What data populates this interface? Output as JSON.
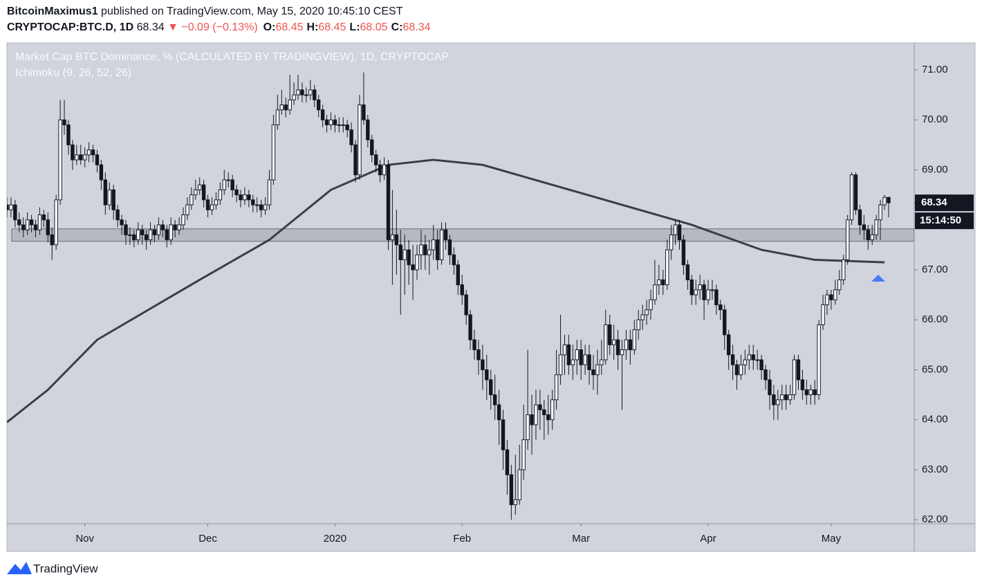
{
  "header": {
    "user": "BitcoinMaximus1",
    "published": "published on TradingView.com, May 15, 2020 10:45:10 CEST",
    "symbol": "CRYPTOCAP:BTC.D, 1D",
    "price": "68.34",
    "change": "▼ −0.09 (−0.13%)",
    "ohlc": [
      {
        "label": "O:",
        "value": "68.45"
      },
      {
        "label": "H:",
        "value": "68.45"
      },
      {
        "label": "L:",
        "value": "68.05"
      },
      {
        "label": "C:",
        "value": "68.34"
      }
    ]
  },
  "footer": {
    "brand": "TradingView"
  },
  "chart_data": {
    "type": "candlestick",
    "title": "Market Cap BTC Dominance, % (CALCULATED BY TRADINGVIEW), 1D, CRYPTOCAP",
    "indicator": "Ichimoku (9, 26, 52, 26)",
    "up_color": "#ffffff",
    "down_color": "#131722",
    "xlim": [
      0,
      221.25
    ],
    "ylim": [
      61.92,
      71.54
    ],
    "grid": false,
    "yticks": [
      {
        "value": 62,
        "label": "62.00"
      },
      {
        "value": 63,
        "label": "63.00"
      },
      {
        "value": 64,
        "label": "64.00"
      },
      {
        "value": 65,
        "label": "65.00"
      },
      {
        "value": 66,
        "label": "66.00"
      },
      {
        "value": 67,
        "label": "67.00"
      },
      {
        "value": 68,
        "label": "68.00"
      },
      {
        "value": 69,
        "label": "69.00"
      },
      {
        "value": 70,
        "label": "70.00"
      },
      {
        "value": 71,
        "label": "71.00"
      }
    ],
    "xticks": [
      {
        "value": 19,
        "label": "Nov"
      },
      {
        "value": 49,
        "label": "Dec"
      },
      {
        "value": 80,
        "label": "2020"
      },
      {
        "value": 111,
        "label": "Feb"
      },
      {
        "value": 140,
        "label": "Mar"
      },
      {
        "value": 171,
        "label": "Apr"
      },
      {
        "value": 201,
        "label": "May"
      }
    ],
    "last_price": 68.34,
    "countdown": "15:14:50",
    "band": [
      67.57,
      67.82
    ],
    "ma": {
      "color": "#3b3d45",
      "x": [
        0,
        10,
        22,
        47,
        64,
        79,
        93,
        104,
        116,
        133,
        150,
        167,
        184,
        197,
        214
      ],
      "values": [
        63.95,
        64.6,
        65.6,
        66.8,
        67.6,
        68.6,
        69.1,
        69.2,
        69.1,
        68.7,
        68.3,
        67.9,
        67.4,
        67.2,
        67.15
      ]
    },
    "candles": [
      [
        68.3,
        68.45,
        68.05,
        68.2
      ],
      [
        68.2,
        68.45,
        68.05,
        68.3
      ],
      [
        68.3,
        68.4,
        67.85,
        68.0
      ],
      [
        68.0,
        68.15,
        67.75,
        67.9
      ],
      [
        67.9,
        68.05,
        67.65,
        67.8
      ],
      [
        67.8,
        68.15,
        67.7,
        68.0
      ],
      [
        68.0,
        68.1,
        67.75,
        67.9
      ],
      [
        67.9,
        68.0,
        67.65,
        67.8
      ],
      [
        67.8,
        68.25,
        67.7,
        68.1
      ],
      [
        68.1,
        68.2,
        67.85,
        68.0
      ],
      [
        68.0,
        68.15,
        67.55,
        67.7
      ],
      [
        67.7,
        67.85,
        67.2,
        67.5
      ],
      [
        67.5,
        68.5,
        67.4,
        68.4
      ],
      [
        68.4,
        70.4,
        68.3,
        70.0
      ],
      [
        70.0,
        70.4,
        69.7,
        69.9
      ],
      [
        69.9,
        70.0,
        69.3,
        69.5
      ],
      [
        69.5,
        69.6,
        69.0,
        69.2
      ],
      [
        69.2,
        69.5,
        69.1,
        69.3
      ],
      [
        69.3,
        69.5,
        69.1,
        69.2
      ],
      [
        69.2,
        69.45,
        69.05,
        69.3
      ],
      [
        69.3,
        69.55,
        69.15,
        69.4
      ],
      [
        69.4,
        69.5,
        69.15,
        69.3
      ],
      [
        69.3,
        69.4,
        68.95,
        69.1
      ],
      [
        69.1,
        69.2,
        68.6,
        68.8
      ],
      [
        68.8,
        68.95,
        68.1,
        68.3
      ],
      [
        68.3,
        68.75,
        68.2,
        68.6
      ],
      [
        68.6,
        68.7,
        68.0,
        68.2
      ],
      [
        68.2,
        68.3,
        67.85,
        68.0
      ],
      [
        68.0,
        68.1,
        67.7,
        67.9
      ],
      [
        67.9,
        68.0,
        67.5,
        67.7
      ],
      [
        67.7,
        67.85,
        67.5,
        67.7
      ],
      [
        67.7,
        67.8,
        67.45,
        67.6
      ],
      [
        67.6,
        67.95,
        67.5,
        67.8
      ],
      [
        67.8,
        67.9,
        67.5,
        67.7
      ],
      [
        67.7,
        67.8,
        67.4,
        67.6
      ],
      [
        67.6,
        67.95,
        67.5,
        67.8
      ],
      [
        67.8,
        67.9,
        67.55,
        67.7
      ],
      [
        67.7,
        68.05,
        67.6,
        67.9
      ],
      [
        67.9,
        68.0,
        67.65,
        67.8
      ],
      [
        67.8,
        67.9,
        67.45,
        67.6
      ],
      [
        67.6,
        68.05,
        67.5,
        67.9
      ],
      [
        67.9,
        68.0,
        67.65,
        67.8
      ],
      [
        67.8,
        68.05,
        67.7,
        67.9
      ],
      [
        67.9,
        68.25,
        67.8,
        68.1
      ],
      [
        68.1,
        68.45,
        68.0,
        68.3
      ],
      [
        68.3,
        68.65,
        68.2,
        68.5
      ],
      [
        68.5,
        68.8,
        68.4,
        68.6
      ],
      [
        68.6,
        68.85,
        68.5,
        68.7
      ],
      [
        68.7,
        68.8,
        68.25,
        68.4
      ],
      [
        68.4,
        68.5,
        68.05,
        68.2
      ],
      [
        68.2,
        68.45,
        68.1,
        68.3
      ],
      [
        68.3,
        68.55,
        68.2,
        68.4
      ],
      [
        68.4,
        68.75,
        68.3,
        68.6
      ],
      [
        68.6,
        69.0,
        68.5,
        68.8
      ],
      [
        68.8,
        68.95,
        68.65,
        68.8
      ],
      [
        68.8,
        68.9,
        68.45,
        68.6
      ],
      [
        68.6,
        68.7,
        68.35,
        68.5
      ],
      [
        68.5,
        68.6,
        68.25,
        68.4
      ],
      [
        68.4,
        68.65,
        68.3,
        68.5
      ],
      [
        68.5,
        68.6,
        68.25,
        68.4
      ],
      [
        68.4,
        68.5,
        68.15,
        68.3
      ],
      [
        68.3,
        68.45,
        68.15,
        68.3
      ],
      [
        68.3,
        68.4,
        68.05,
        68.2
      ],
      [
        68.2,
        68.45,
        68.1,
        68.3
      ],
      [
        68.3,
        69.0,
        68.2,
        68.8
      ],
      [
        68.8,
        70.1,
        68.7,
        69.9
      ],
      [
        69.9,
        70.5,
        69.8,
        70.2
      ],
      [
        70.2,
        70.6,
        70.1,
        70.3
      ],
      [
        70.3,
        70.45,
        70.05,
        70.2
      ],
      [
        70.2,
        70.9,
        70.1,
        70.4
      ],
      [
        70.4,
        70.75,
        70.3,
        70.5
      ],
      [
        70.5,
        70.9,
        70.4,
        70.6
      ],
      [
        70.6,
        70.75,
        70.35,
        70.5
      ],
      [
        70.5,
        70.65,
        70.35,
        70.5
      ],
      [
        70.5,
        70.8,
        70.4,
        70.6
      ],
      [
        70.6,
        70.7,
        70.25,
        70.4
      ],
      [
        70.4,
        70.5,
        70.05,
        70.2
      ],
      [
        70.2,
        70.3,
        69.85,
        70.0
      ],
      [
        70.0,
        70.1,
        69.75,
        69.9
      ],
      [
        69.9,
        70.15,
        69.8,
        70.0
      ],
      [
        70.0,
        70.1,
        69.75,
        69.9
      ],
      [
        69.9,
        70.05,
        69.75,
        69.9
      ],
      [
        69.9,
        70.05,
        69.75,
        69.9
      ],
      [
        69.9,
        70.0,
        69.65,
        69.8
      ],
      [
        69.8,
        69.95,
        69.35,
        69.5
      ],
      [
        69.5,
        69.6,
        68.75,
        68.9
      ],
      [
        68.9,
        70.5,
        68.8,
        70.3
      ],
      [
        70.3,
        70.95,
        69.9,
        70.0
      ],
      [
        70.0,
        70.1,
        69.45,
        69.6
      ],
      [
        69.6,
        69.7,
        69.15,
        69.3
      ],
      [
        69.3,
        69.4,
        68.95,
        69.1
      ],
      [
        69.1,
        69.2,
        68.75,
        68.9
      ],
      [
        68.9,
        69.25,
        68.8,
        69.1
      ],
      [
        69.1,
        69.2,
        67.4,
        67.6
      ],
      [
        67.6,
        68.6,
        66.7,
        67.7
      ],
      [
        67.7,
        68.2,
        66.9,
        67.5
      ],
      [
        67.5,
        67.8,
        66.1,
        67.2
      ],
      [
        67.2,
        67.7,
        66.5,
        67.4
      ],
      [
        67.4,
        67.6,
        66.7,
        67.1
      ],
      [
        67.1,
        67.5,
        66.4,
        67.0
      ],
      [
        67.0,
        67.5,
        66.8,
        67.3
      ],
      [
        67.3,
        67.8,
        67.0,
        67.5
      ],
      [
        67.5,
        67.7,
        67.0,
        67.3
      ],
      [
        67.3,
        67.6,
        66.9,
        67.4
      ],
      [
        67.4,
        67.9,
        67.2,
        67.6
      ],
      [
        67.6,
        67.8,
        67.0,
        67.2
      ],
      [
        67.2,
        67.95,
        67.1,
        67.8
      ],
      [
        67.8,
        67.95,
        67.4,
        67.6
      ],
      [
        67.6,
        67.7,
        67.1,
        67.3
      ],
      [
        67.3,
        67.45,
        66.9,
        67.1
      ],
      [
        67.1,
        67.2,
        66.5,
        66.7
      ],
      [
        66.7,
        66.9,
        66.3,
        66.5
      ],
      [
        66.5,
        66.6,
        65.9,
        66.1
      ],
      [
        66.1,
        66.2,
        65.4,
        65.6
      ],
      [
        65.6,
        65.8,
        65.2,
        65.4
      ],
      [
        65.4,
        65.6,
        64.9,
        65.2
      ],
      [
        65.2,
        65.5,
        64.6,
        65.0
      ],
      [
        65.0,
        65.3,
        64.4,
        64.8
      ],
      [
        64.8,
        65.0,
        64.2,
        64.5
      ],
      [
        64.5,
        64.9,
        64.0,
        64.3
      ],
      [
        64.3,
        64.6,
        63.5,
        64.0
      ],
      [
        64.0,
        64.2,
        63.0,
        63.4
      ],
      [
        63.4,
        63.6,
        62.5,
        62.9
      ],
      [
        62.9,
        63.1,
        62.0,
        62.3
      ],
      [
        62.3,
        63.3,
        62.1,
        62.4
      ],
      [
        62.4,
        63.5,
        62.3,
        63.0
      ],
      [
        63.0,
        64.3,
        62.8,
        63.6
      ],
      [
        63.6,
        65.4,
        63.4,
        64.1
      ],
      [
        64.1,
        64.5,
        63.3,
        63.9
      ],
      [
        63.9,
        64.6,
        63.6,
        64.3
      ],
      [
        64.3,
        64.6,
        63.8,
        64.2
      ],
      [
        64.2,
        64.4,
        63.6,
        64.1
      ],
      [
        64.1,
        64.5,
        63.7,
        64.0
      ],
      [
        64.0,
        64.6,
        63.8,
        64.4
      ],
      [
        64.4,
        65.4,
        64.2,
        64.9
      ],
      [
        64.9,
        66.1,
        64.7,
        65.3
      ],
      [
        65.3,
        65.7,
        64.9,
        65.5
      ],
      [
        65.5,
        65.7,
        64.9,
        65.1
      ],
      [
        65.1,
        65.5,
        64.8,
        65.2
      ],
      [
        65.2,
        65.6,
        64.9,
        65.4
      ],
      [
        65.4,
        65.6,
        64.8,
        65.1
      ],
      [
        65.1,
        65.5,
        64.9,
        65.3
      ],
      [
        65.3,
        65.5,
        64.7,
        65.0
      ],
      [
        65.0,
        65.3,
        64.6,
        64.9
      ],
      [
        64.9,
        65.4,
        64.5,
        65.1
      ],
      [
        65.1,
        65.6,
        64.9,
        65.2
      ],
      [
        65.2,
        66.2,
        65.1,
        65.9
      ],
      [
        65.9,
        66.1,
        65.3,
        65.5
      ],
      [
        65.5,
        65.9,
        65.2,
        65.6
      ],
      [
        65.6,
        65.8,
        65.0,
        65.3
      ],
      [
        65.3,
        65.6,
        64.2,
        65.4
      ],
      [
        65.4,
        65.8,
        65.2,
        65.6
      ],
      [
        65.6,
        65.8,
        65.1,
        65.4
      ],
      [
        65.4,
        66.0,
        65.3,
        65.8
      ],
      [
        65.8,
        66.2,
        65.6,
        66.0
      ],
      [
        66.0,
        66.3,
        65.8,
        66.1
      ],
      [
        66.1,
        66.4,
        65.9,
        66.2
      ],
      [
        66.2,
        66.6,
        66.0,
        66.4
      ],
      [
        66.4,
        67.2,
        66.3,
        66.7
      ],
      [
        66.7,
        67.1,
        66.5,
        66.8
      ],
      [
        66.8,
        67.0,
        66.5,
        66.7
      ],
      [
        66.7,
        67.6,
        66.6,
        67.4
      ],
      [
        67.4,
        67.9,
        67.2,
        67.7
      ],
      [
        67.7,
        68.0,
        67.5,
        67.9
      ],
      [
        67.9,
        68.0,
        67.4,
        67.6
      ],
      [
        67.6,
        67.7,
        66.9,
        67.1
      ],
      [
        67.1,
        67.2,
        66.6,
        66.8
      ],
      [
        66.8,
        66.9,
        66.3,
        66.5
      ],
      [
        66.5,
        66.8,
        66.3,
        66.6
      ],
      [
        66.6,
        66.9,
        66.4,
        66.7
      ],
      [
        66.7,
        66.8,
        66.0,
        66.4
      ],
      [
        66.4,
        66.8,
        66.3,
        66.6
      ],
      [
        66.6,
        66.8,
        66.4,
        66.6
      ],
      [
        66.6,
        66.7,
        66.1,
        66.3
      ],
      [
        66.3,
        66.4,
        66.0,
        66.2
      ],
      [
        66.2,
        66.3,
        65.4,
        65.7
      ],
      [
        65.7,
        65.8,
        65.0,
        65.3
      ],
      [
        65.3,
        65.5,
        64.8,
        65.1
      ],
      [
        65.1,
        65.2,
        64.6,
        64.9
      ],
      [
        64.9,
        65.3,
        64.8,
        65.1
      ],
      [
        65.1,
        65.4,
        64.9,
        65.2
      ],
      [
        65.2,
        65.5,
        65.0,
        65.3
      ],
      [
        65.3,
        65.5,
        65.0,
        65.2
      ],
      [
        65.2,
        65.4,
        65.0,
        65.2
      ],
      [
        65.2,
        65.3,
        64.8,
        65.0
      ],
      [
        65.0,
        65.1,
        64.6,
        64.8
      ],
      [
        64.8,
        65.0,
        64.2,
        64.5
      ],
      [
        64.5,
        64.7,
        64.0,
        64.3
      ],
      [
        64.3,
        64.6,
        64.0,
        64.4
      ],
      [
        64.4,
        64.7,
        64.2,
        64.5
      ],
      [
        64.5,
        64.7,
        64.2,
        64.4
      ],
      [
        64.4,
        64.7,
        64.3,
        64.5
      ],
      [
        64.5,
        65.3,
        64.4,
        65.2
      ],
      [
        65.2,
        65.3,
        64.6,
        64.8
      ],
      [
        64.8,
        65.0,
        64.4,
        64.6
      ],
      [
        64.6,
        64.8,
        64.3,
        64.5
      ],
      [
        64.5,
        64.7,
        64.3,
        64.6
      ],
      [
        64.6,
        64.8,
        64.3,
        64.5
      ],
      [
        64.5,
        66.0,
        64.4,
        65.9
      ],
      [
        65.9,
        66.5,
        65.8,
        66.3
      ],
      [
        66.3,
        66.6,
        66.1,
        66.5
      ],
      [
        66.5,
        66.6,
        66.2,
        66.4
      ],
      [
        66.4,
        66.8,
        66.3,
        66.6
      ],
      [
        66.6,
        67.0,
        66.5,
        66.8
      ],
      [
        66.8,
        67.3,
        66.7,
        67.2
      ],
      [
        67.2,
        68.1,
        67.1,
        68.0
      ],
      [
        68.0,
        68.95,
        67.9,
        68.9
      ],
      [
        68.9,
        68.95,
        68.1,
        68.2
      ],
      [
        68.2,
        68.3,
        67.7,
        67.9
      ],
      [
        67.9,
        68.1,
        67.6,
        67.8
      ],
      [
        67.8,
        67.9,
        67.4,
        67.6
      ],
      [
        67.6,
        67.9,
        67.5,
        67.7
      ],
      [
        67.7,
        68.1,
        67.6,
        68.0
      ],
      [
        68.0,
        68.4,
        67.6,
        68.3
      ],
      [
        68.3,
        68.5,
        68.2,
        68.45
      ],
      [
        68.45,
        68.45,
        68.05,
        68.34
      ]
    ]
  }
}
